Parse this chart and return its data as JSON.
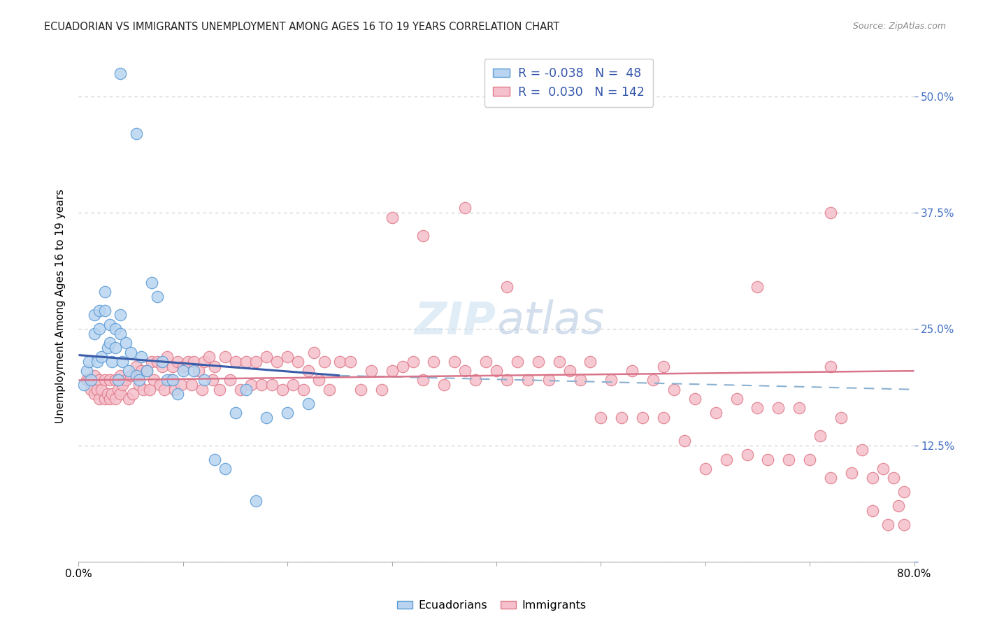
{
  "title": "ECUADORIAN VS IMMIGRANTS UNEMPLOYMENT AMONG AGES 16 TO 19 YEARS CORRELATION CHART",
  "source": "Source: ZipAtlas.com",
  "ylabel": "Unemployment Among Ages 16 to 19 years",
  "xlim": [
    0.0,
    0.8
  ],
  "ylim": [
    0.0,
    0.55
  ],
  "yticks": [
    0.0,
    0.125,
    0.25,
    0.375,
    0.5
  ],
  "xticks": [
    0.0,
    0.1,
    0.2,
    0.3,
    0.4,
    0.5,
    0.6,
    0.7,
    0.8
  ],
  "ecuadorians_fill": "#b8d4f0",
  "ecuadorians_edge": "#5b9bd5",
  "immigrants_fill": "#f5c0cb",
  "immigrants_edge": "#e07b8a",
  "trend_blue_color": "#3a5ca8",
  "trend_pink_solid_color": "#d9748a",
  "trend_pink_dashed_color": "#8ab0d0",
  "legend_R1": "-0.038",
  "legend_N1": " 48",
  "legend_R2": " 0.030",
  "legend_N2": "142",
  "ecu_x": [
    0.005,
    0.008,
    0.01,
    0.012,
    0.015,
    0.015,
    0.018,
    0.02,
    0.02,
    0.022,
    0.025,
    0.025,
    0.028,
    0.03,
    0.03,
    0.032,
    0.035,
    0.035,
    0.038,
    0.04,
    0.04,
    0.042,
    0.045,
    0.048,
    0.05,
    0.055,
    0.058,
    0.06,
    0.065,
    0.07,
    0.075,
    0.08,
    0.085,
    0.09,
    0.095,
    0.1,
    0.11,
    0.12,
    0.13,
    0.14,
    0.15,
    0.16,
    0.17,
    0.18,
    0.2,
    0.22,
    0.04,
    0.055
  ],
  "ecu_y": [
    0.19,
    0.205,
    0.215,
    0.195,
    0.265,
    0.245,
    0.215,
    0.27,
    0.25,
    0.22,
    0.29,
    0.27,
    0.23,
    0.255,
    0.235,
    0.215,
    0.25,
    0.23,
    0.195,
    0.265,
    0.245,
    0.215,
    0.235,
    0.205,
    0.225,
    0.2,
    0.195,
    0.22,
    0.205,
    0.3,
    0.285,
    0.215,
    0.195,
    0.195,
    0.18,
    0.205,
    0.205,
    0.195,
    0.11,
    0.1,
    0.16,
    0.185,
    0.065,
    0.155,
    0.16,
    0.17,
    0.525,
    0.46
  ],
  "imm_x": [
    0.008,
    0.01,
    0.012,
    0.015,
    0.015,
    0.018,
    0.02,
    0.02,
    0.022,
    0.025,
    0.025,
    0.028,
    0.03,
    0.03,
    0.032,
    0.035,
    0.035,
    0.038,
    0.04,
    0.04,
    0.042,
    0.045,
    0.048,
    0.05,
    0.052,
    0.055,
    0.058,
    0.06,
    0.062,
    0.065,
    0.068,
    0.07,
    0.072,
    0.075,
    0.078,
    0.08,
    0.082,
    0.085,
    0.088,
    0.09,
    0.092,
    0.095,
    0.098,
    0.1,
    0.105,
    0.108,
    0.11,
    0.115,
    0.118,
    0.12,
    0.125,
    0.128,
    0.13,
    0.135,
    0.14,
    0.145,
    0.15,
    0.155,
    0.16,
    0.165,
    0.17,
    0.175,
    0.18,
    0.185,
    0.19,
    0.195,
    0.2,
    0.205,
    0.21,
    0.215,
    0.22,
    0.225,
    0.23,
    0.235,
    0.24,
    0.25,
    0.26,
    0.27,
    0.28,
    0.29,
    0.3,
    0.31,
    0.32,
    0.33,
    0.34,
    0.35,
    0.36,
    0.37,
    0.38,
    0.39,
    0.4,
    0.41,
    0.42,
    0.43,
    0.44,
    0.45,
    0.46,
    0.47,
    0.48,
    0.49,
    0.5,
    0.51,
    0.52,
    0.53,
    0.54,
    0.55,
    0.56,
    0.57,
    0.58,
    0.59,
    0.6,
    0.61,
    0.62,
    0.63,
    0.64,
    0.65,
    0.66,
    0.67,
    0.68,
    0.69,
    0.7,
    0.71,
    0.72,
    0.73,
    0.74,
    0.75,
    0.76,
    0.77,
    0.78,
    0.79,
    0.3,
    0.33,
    0.37,
    0.41,
    0.65,
    0.72,
    0.56,
    0.72,
    0.76,
    0.775,
    0.79,
    0.785
  ],
  "imm_y": [
    0.195,
    0.195,
    0.185,
    0.2,
    0.18,
    0.185,
    0.195,
    0.175,
    0.185,
    0.195,
    0.175,
    0.18,
    0.195,
    0.175,
    0.18,
    0.195,
    0.175,
    0.185,
    0.2,
    0.18,
    0.19,
    0.195,
    0.175,
    0.2,
    0.18,
    0.21,
    0.19,
    0.205,
    0.185,
    0.205,
    0.185,
    0.215,
    0.195,
    0.215,
    0.19,
    0.21,
    0.185,
    0.22,
    0.195,
    0.21,
    0.185,
    0.215,
    0.19,
    0.21,
    0.215,
    0.19,
    0.215,
    0.205,
    0.185,
    0.215,
    0.22,
    0.195,
    0.21,
    0.185,
    0.22,
    0.195,
    0.215,
    0.185,
    0.215,
    0.19,
    0.215,
    0.19,
    0.22,
    0.19,
    0.215,
    0.185,
    0.22,
    0.19,
    0.215,
    0.185,
    0.205,
    0.225,
    0.195,
    0.215,
    0.185,
    0.215,
    0.215,
    0.185,
    0.205,
    0.185,
    0.205,
    0.21,
    0.215,
    0.195,
    0.215,
    0.19,
    0.215,
    0.205,
    0.195,
    0.215,
    0.205,
    0.195,
    0.215,
    0.195,
    0.215,
    0.195,
    0.215,
    0.205,
    0.195,
    0.215,
    0.155,
    0.195,
    0.155,
    0.205,
    0.155,
    0.195,
    0.155,
    0.185,
    0.13,
    0.175,
    0.1,
    0.16,
    0.11,
    0.175,
    0.115,
    0.165,
    0.11,
    0.165,
    0.11,
    0.165,
    0.11,
    0.135,
    0.09,
    0.155,
    0.095,
    0.12,
    0.09,
    0.1,
    0.09,
    0.075,
    0.37,
    0.35,
    0.38,
    0.295,
    0.295,
    0.375,
    0.21,
    0.21,
    0.055,
    0.04,
    0.04,
    0.06
  ]
}
